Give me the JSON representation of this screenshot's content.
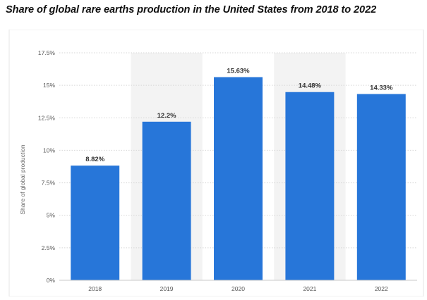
{
  "chart_data": {
    "type": "bar",
    "title": "Share of global rare earths production in the United States from 2018 to 2022",
    "xlabel": "",
    "ylabel": "Share of global production",
    "categories": [
      "2018",
      "2019",
      "2020",
      "2021",
      "2022"
    ],
    "values": [
      8.82,
      12.2,
      15.63,
      14.48,
      14.33
    ],
    "data_labels": [
      "8.82%",
      "12.2%",
      "15.63%",
      "14.48%",
      "14.33%"
    ],
    "ylim": [
      0,
      17.5
    ],
    "yticks": [
      0,
      2.5,
      5,
      7.5,
      10,
      12.5,
      15,
      17.5
    ],
    "ytick_labels": [
      "0%",
      "2.5%",
      "5%",
      "7.5%",
      "10%",
      "12.5%",
      "15%",
      "17.5%"
    ],
    "grid": true,
    "bar_color": "#2776d9",
    "alt_band_color": "#f3f3f3",
    "grid_color": "#d6d6d6"
  }
}
